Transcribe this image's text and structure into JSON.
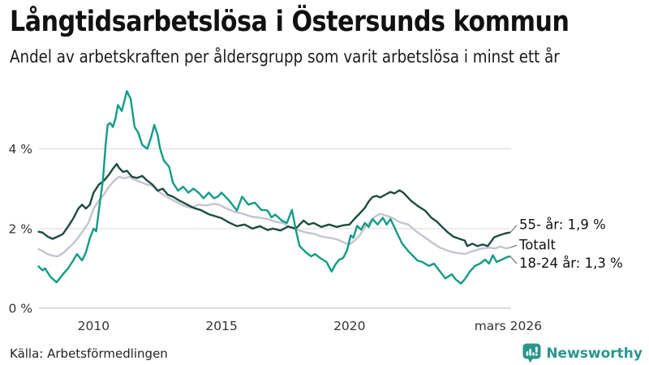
{
  "footer": {
    "source": "Källa: Arbetsförmedlingen",
    "brand": "Newsworthy"
  },
  "colors": {
    "teal": "#129c86",
    "dark_green": "#1d4b41",
    "light_gray": "#c6c3cf",
    "grid": "#dddddd",
    "axis_zero": "#c8c8c8",
    "connector": "#555555",
    "brand_teal": "#2b968c",
    "text": "#111111"
  },
  "chart_data": {
    "type": "line",
    "title": "Långtidsarbetslösa i Östersunds kommun",
    "subtitle": "Andel av arbetskraften per åldersgrupp som varit arbetslösa i minst ett år",
    "xlabel": "",
    "ylabel": "",
    "xlim": [
      2007.8,
      2026.25
    ],
    "ylim": [
      0,
      5.7
    ],
    "grid": "horizontal",
    "legend_position": "line-end-labels-right",
    "x_ticks": [
      {
        "label": "2010",
        "value": 2010
      },
      {
        "label": "2015",
        "value": 2015
      },
      {
        "label": "2020",
        "value": 2020
      },
      {
        "label": "mars 2026",
        "value": 2026.2
      }
    ],
    "y_ticks": [
      {
        "label": "0 %",
        "value": 0
      },
      {
        "label": "2 %",
        "value": 2
      },
      {
        "label": "4 %",
        "value": 4
      }
    ],
    "series": [
      {
        "id": "totalt",
        "name": "Totalt",
        "end_label": "Totalt",
        "end_value": 1.5,
        "color": "#c6c3cf",
        "label_dy": 2,
        "points": [
          [
            2007.85,
            1.48
          ],
          [
            2008.0,
            1.44
          ],
          [
            2008.2,
            1.36
          ],
          [
            2008.4,
            1.32
          ],
          [
            2008.6,
            1.3
          ],
          [
            2008.8,
            1.38
          ],
          [
            2009.0,
            1.5
          ],
          [
            2009.2,
            1.62
          ],
          [
            2009.4,
            1.78
          ],
          [
            2009.6,
            1.95
          ],
          [
            2009.8,
            2.15
          ],
          [
            2010.0,
            2.5
          ],
          [
            2010.2,
            2.7
          ],
          [
            2010.4,
            2.85
          ],
          [
            2010.6,
            3.05
          ],
          [
            2010.8,
            3.2
          ],
          [
            2011.0,
            3.3
          ],
          [
            2011.2,
            3.26
          ],
          [
            2011.4,
            3.3
          ],
          [
            2011.6,
            3.22
          ],
          [
            2011.9,
            3.15
          ],
          [
            2012.1,
            3.1
          ],
          [
            2012.3,
            3.07
          ],
          [
            2012.6,
            2.9
          ],
          [
            2012.9,
            2.78
          ],
          [
            2013.2,
            2.68
          ],
          [
            2013.5,
            2.58
          ],
          [
            2013.8,
            2.52
          ],
          [
            2014.1,
            2.6
          ],
          [
            2014.4,
            2.58
          ],
          [
            2014.7,
            2.62
          ],
          [
            2014.9,
            2.6
          ],
          [
            2015.2,
            2.5
          ],
          [
            2015.5,
            2.42
          ],
          [
            2015.85,
            2.37
          ],
          [
            2016.15,
            2.3
          ],
          [
            2016.5,
            2.27
          ],
          [
            2016.8,
            2.24
          ],
          [
            2017.1,
            2.17
          ],
          [
            2017.4,
            2.14
          ],
          [
            2017.65,
            2.04
          ],
          [
            2017.95,
            1.97
          ],
          [
            2018.3,
            1.9
          ],
          [
            2018.6,
            1.87
          ],
          [
            2018.9,
            1.8
          ],
          [
            2019.2,
            1.77
          ],
          [
            2019.5,
            1.73
          ],
          [
            2019.85,
            1.63
          ],
          [
            2020.0,
            1.6
          ],
          [
            2020.2,
            1.7
          ],
          [
            2020.4,
            1.83
          ],
          [
            2020.6,
            2.04
          ],
          [
            2020.8,
            2.17
          ],
          [
            2021.0,
            2.3
          ],
          [
            2021.2,
            2.37
          ],
          [
            2021.35,
            2.34
          ],
          [
            2021.55,
            2.3
          ],
          [
            2021.75,
            2.24
          ],
          [
            2021.95,
            2.16
          ],
          [
            2022.3,
            2.1
          ],
          [
            2022.6,
            1.93
          ],
          [
            2022.9,
            1.8
          ],
          [
            2023.2,
            1.66
          ],
          [
            2023.5,
            1.53
          ],
          [
            2023.85,
            1.44
          ],
          [
            2024.15,
            1.39
          ],
          [
            2024.5,
            1.36
          ],
          [
            2024.8,
            1.43
          ],
          [
            2025.1,
            1.49
          ],
          [
            2025.45,
            1.52
          ],
          [
            2025.7,
            1.5
          ],
          [
            2025.9,
            1.55
          ],
          [
            2026.1,
            1.5
          ],
          [
            2026.25,
            1.52
          ]
        ]
      },
      {
        "id": "55-ar",
        "name": "55- år",
        "end_label": "55- år: 1,9 %",
        "end_value": 1.9,
        "color": "#1d4b41",
        "label_dy": -4,
        "points": [
          [
            2007.85,
            1.92
          ],
          [
            2008.0,
            1.9
          ],
          [
            2008.2,
            1.8
          ],
          [
            2008.4,
            1.74
          ],
          [
            2008.6,
            1.8
          ],
          [
            2008.8,
            1.86
          ],
          [
            2009.0,
            2.05
          ],
          [
            2009.2,
            2.25
          ],
          [
            2009.4,
            2.5
          ],
          [
            2009.55,
            2.6
          ],
          [
            2009.7,
            2.5
          ],
          [
            2009.85,
            2.6
          ],
          [
            2010.0,
            2.9
          ],
          [
            2010.2,
            3.1
          ],
          [
            2010.4,
            3.2
          ],
          [
            2010.6,
            3.35
          ],
          [
            2010.75,
            3.5
          ],
          [
            2010.9,
            3.62
          ],
          [
            2011.0,
            3.52
          ],
          [
            2011.15,
            3.42
          ],
          [
            2011.3,
            3.45
          ],
          [
            2011.5,
            3.3
          ],
          [
            2011.7,
            3.27
          ],
          [
            2011.9,
            3.32
          ],
          [
            2012.1,
            3.2
          ],
          [
            2012.3,
            3.1
          ],
          [
            2012.5,
            2.95
          ],
          [
            2012.7,
            3.0
          ],
          [
            2012.9,
            2.85
          ],
          [
            2013.1,
            2.8
          ],
          [
            2013.3,
            2.72
          ],
          [
            2013.6,
            2.62
          ],
          [
            2013.9,
            2.52
          ],
          [
            2014.2,
            2.46
          ],
          [
            2014.5,
            2.36
          ],
          [
            2014.8,
            2.3
          ],
          [
            2015.0,
            2.26
          ],
          [
            2015.3,
            2.15
          ],
          [
            2015.6,
            2.06
          ],
          [
            2015.9,
            2.1
          ],
          [
            2016.2,
            2.0
          ],
          [
            2016.5,
            2.06
          ],
          [
            2016.8,
            1.96
          ],
          [
            2017.0,
            2.0
          ],
          [
            2017.3,
            1.95
          ],
          [
            2017.6,
            2.05
          ],
          [
            2017.9,
            2.0
          ],
          [
            2018.2,
            2.2
          ],
          [
            2018.4,
            2.1
          ],
          [
            2018.6,
            2.14
          ],
          [
            2018.9,
            2.04
          ],
          [
            2019.2,
            2.1
          ],
          [
            2019.5,
            2.04
          ],
          [
            2019.75,
            2.08
          ],
          [
            2020.0,
            2.1
          ],
          [
            2020.2,
            2.25
          ],
          [
            2020.4,
            2.38
          ],
          [
            2020.6,
            2.52
          ],
          [
            2020.75,
            2.68
          ],
          [
            2020.9,
            2.79
          ],
          [
            2021.05,
            2.82
          ],
          [
            2021.2,
            2.78
          ],
          [
            2021.4,
            2.85
          ],
          [
            2021.6,
            2.92
          ],
          [
            2021.75,
            2.88
          ],
          [
            2021.95,
            2.96
          ],
          [
            2022.1,
            2.9
          ],
          [
            2022.4,
            2.7
          ],
          [
            2022.7,
            2.55
          ],
          [
            2022.95,
            2.45
          ],
          [
            2023.2,
            2.27
          ],
          [
            2023.4,
            2.18
          ],
          [
            2023.65,
            2.02
          ],
          [
            2023.85,
            1.9
          ],
          [
            2024.05,
            1.8
          ],
          [
            2024.3,
            1.74
          ],
          [
            2024.5,
            1.7
          ],
          [
            2024.6,
            1.56
          ],
          [
            2024.8,
            1.62
          ],
          [
            2025.0,
            1.56
          ],
          [
            2025.2,
            1.6
          ],
          [
            2025.4,
            1.56
          ],
          [
            2025.65,
            1.78
          ],
          [
            2025.85,
            1.83
          ],
          [
            2026.05,
            1.87
          ],
          [
            2026.25,
            1.9
          ]
        ]
      },
      {
        "id": "18-24-ar",
        "name": "18-24 år",
        "end_label": "18-24 år: 1,3 %",
        "end_value": 1.3,
        "color": "#129c86",
        "label_dy": 14,
        "points": [
          [
            2007.85,
            1.05
          ],
          [
            2008.0,
            0.95
          ],
          [
            2008.1,
            1.0
          ],
          [
            2008.3,
            0.8
          ],
          [
            2008.55,
            0.65
          ],
          [
            2008.8,
            0.85
          ],
          [
            2009.0,
            1.0
          ],
          [
            2009.2,
            1.2
          ],
          [
            2009.35,
            1.36
          ],
          [
            2009.55,
            1.2
          ],
          [
            2009.7,
            1.4
          ],
          [
            2009.85,
            1.75
          ],
          [
            2010.0,
            2.0
          ],
          [
            2010.1,
            1.93
          ],
          [
            2010.25,
            2.68
          ],
          [
            2010.36,
            3.2
          ],
          [
            2010.47,
            4.1
          ],
          [
            2010.55,
            4.6
          ],
          [
            2010.65,
            4.65
          ],
          [
            2010.75,
            4.55
          ],
          [
            2010.85,
            4.75
          ],
          [
            2010.95,
            5.1
          ],
          [
            2011.1,
            4.95
          ],
          [
            2011.2,
            5.2
          ],
          [
            2011.3,
            5.45
          ],
          [
            2011.45,
            5.25
          ],
          [
            2011.6,
            4.55
          ],
          [
            2011.75,
            4.4
          ],
          [
            2011.9,
            4.1
          ],
          [
            2012.1,
            4.0
          ],
          [
            2012.25,
            4.3
          ],
          [
            2012.37,
            4.6
          ],
          [
            2012.5,
            4.35
          ],
          [
            2012.6,
            4.0
          ],
          [
            2012.75,
            3.7
          ],
          [
            2012.95,
            3.55
          ],
          [
            2013.1,
            3.15
          ],
          [
            2013.3,
            2.95
          ],
          [
            2013.5,
            3.05
          ],
          [
            2013.7,
            2.9
          ],
          [
            2013.9,
            3.0
          ],
          [
            2014.1,
            2.9
          ],
          [
            2014.3,
            2.76
          ],
          [
            2014.5,
            2.9
          ],
          [
            2014.7,
            2.76
          ],
          [
            2014.85,
            2.8
          ],
          [
            2015.0,
            2.9
          ],
          [
            2015.3,
            2.7
          ],
          [
            2015.6,
            2.45
          ],
          [
            2015.8,
            2.8
          ],
          [
            2016.05,
            2.6
          ],
          [
            2016.3,
            2.65
          ],
          [
            2016.55,
            2.47
          ],
          [
            2016.8,
            2.45
          ],
          [
            2016.95,
            2.28
          ],
          [
            2017.1,
            2.35
          ],
          [
            2017.35,
            2.2
          ],
          [
            2017.55,
            2.14
          ],
          [
            2017.75,
            2.47
          ],
          [
            2017.9,
            1.97
          ],
          [
            2018.05,
            1.56
          ],
          [
            2018.3,
            1.4
          ],
          [
            2018.5,
            1.3
          ],
          [
            2018.65,
            1.36
          ],
          [
            2018.85,
            1.26
          ],
          [
            2019.1,
            1.16
          ],
          [
            2019.3,
            0.92
          ],
          [
            2019.45,
            1.1
          ],
          [
            2019.6,
            1.22
          ],
          [
            2019.75,
            1.26
          ],
          [
            2019.9,
            1.45
          ],
          [
            2020.05,
            1.83
          ],
          [
            2020.15,
            1.77
          ],
          [
            2020.3,
            2.07
          ],
          [
            2020.45,
            1.97
          ],
          [
            2020.6,
            2.14
          ],
          [
            2020.75,
            2.04
          ],
          [
            2020.9,
            2.24
          ],
          [
            2021.1,
            2.1
          ],
          [
            2021.3,
            2.27
          ],
          [
            2021.45,
            2.1
          ],
          [
            2021.6,
            2.24
          ],
          [
            2021.75,
            2.04
          ],
          [
            2021.9,
            1.83
          ],
          [
            2022.05,
            1.63
          ],
          [
            2022.3,
            1.43
          ],
          [
            2022.5,
            1.3
          ],
          [
            2022.65,
            1.2
          ],
          [
            2022.85,
            1.16
          ],
          [
            2023.1,
            1.06
          ],
          [
            2023.3,
            1.12
          ],
          [
            2023.5,
            0.95
          ],
          [
            2023.75,
            0.75
          ],
          [
            2024.0,
            0.85
          ],
          [
            2024.15,
            0.72
          ],
          [
            2024.35,
            0.62
          ],
          [
            2024.5,
            0.72
          ],
          [
            2024.7,
            0.92
          ],
          [
            2024.9,
            1.06
          ],
          [
            2025.1,
            1.12
          ],
          [
            2025.3,
            1.22
          ],
          [
            2025.45,
            1.12
          ],
          [
            2025.6,
            1.33
          ],
          [
            2025.75,
            1.16
          ],
          [
            2025.95,
            1.22
          ],
          [
            2026.15,
            1.28
          ],
          [
            2026.25,
            1.3
          ]
        ]
      }
    ]
  }
}
